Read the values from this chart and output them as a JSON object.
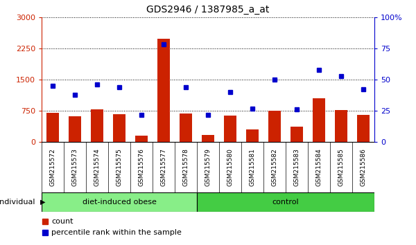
{
  "title": "GDS2946 / 1387985_a_at",
  "samples": [
    "GSM215572",
    "GSM215573",
    "GSM215574",
    "GSM215575",
    "GSM215576",
    "GSM215577",
    "GSM215578",
    "GSM215579",
    "GSM215580",
    "GSM215581",
    "GSM215582",
    "GSM215583",
    "GSM215584",
    "GSM215585",
    "GSM215586"
  ],
  "counts": [
    700,
    620,
    780,
    670,
    155,
    2480,
    690,
    175,
    640,
    310,
    760,
    370,
    1060,
    770,
    660
  ],
  "percentiles": [
    45,
    38,
    46,
    44,
    22,
    78,
    44,
    22,
    40,
    27,
    50,
    26,
    58,
    53,
    42
  ],
  "group1_label": "diet-induced obese",
  "group1_count": 7,
  "group2_label": "control",
  "group2_count": 8,
  "individual_label": "individual",
  "bar_color": "#cc2200",
  "dot_color": "#0000cc",
  "left_axis_color": "#cc2200",
  "right_axis_color": "#0000cc",
  "ylim_left": [
    0,
    3000
  ],
  "ylim_right": [
    0,
    100
  ],
  "left_ticks": [
    0,
    750,
    1500,
    2250,
    3000
  ],
  "right_ticks": [
    0,
    25,
    50,
    75,
    100
  ],
  "group1_color": "#88ee88",
  "group2_color": "#44cc44",
  "sample_bg_color": "#c8c8c8",
  "legend_count_label": "count",
  "legend_pct_label": "percentile rank within the sample"
}
